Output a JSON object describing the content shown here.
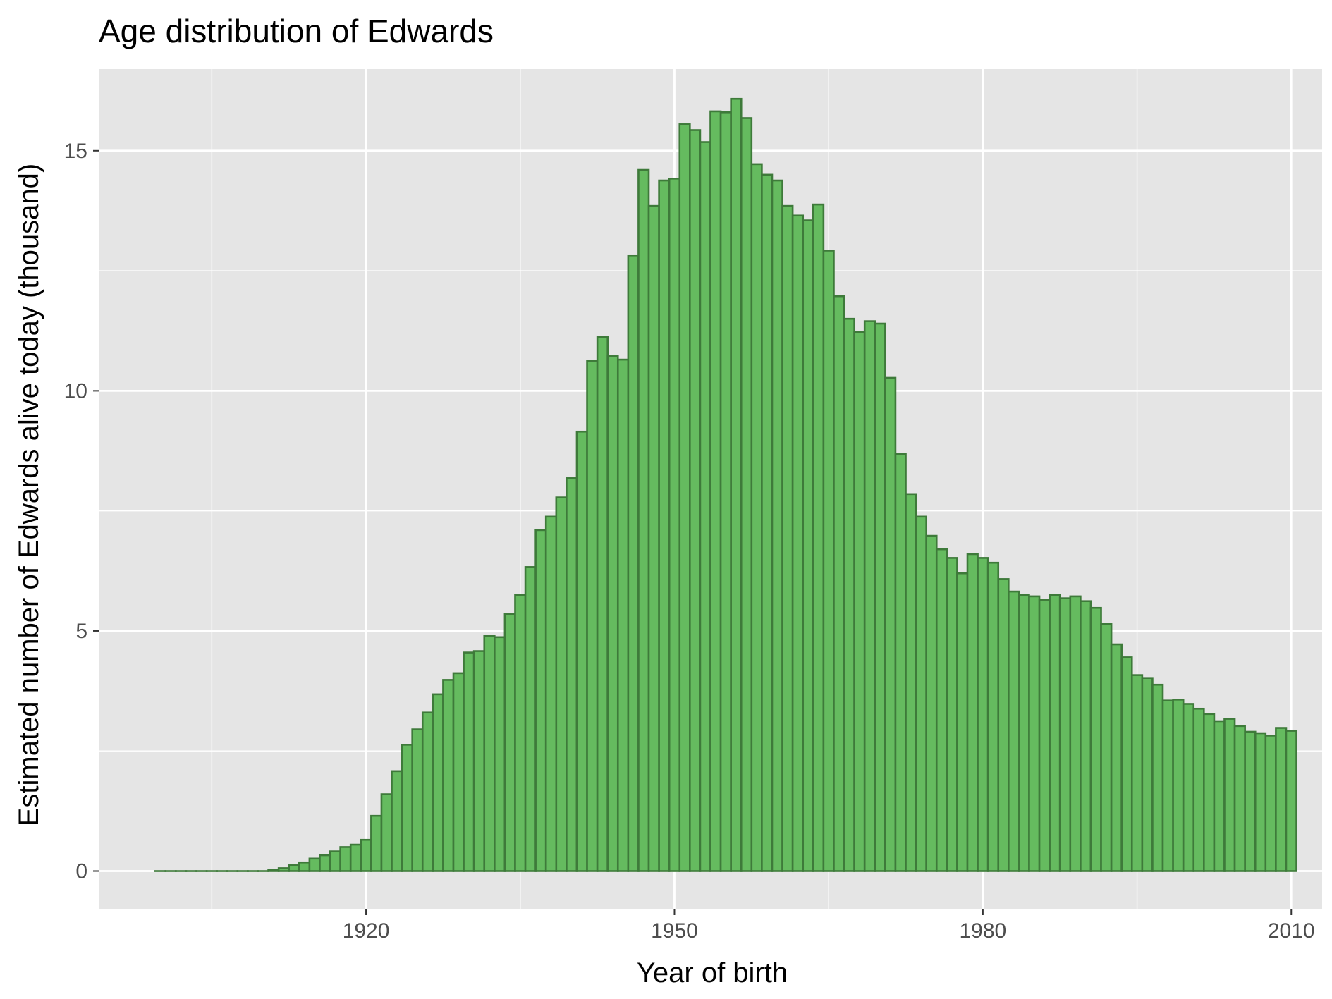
{
  "chart_data": {
    "type": "bar",
    "title": "Age distribution of Edwards",
    "xlabel": "Year of birth",
    "ylabel": "Estimated number of Edwards alive today (thousand)",
    "xlim": [
      1894,
      2013
    ],
    "ylim": [
      -0.8,
      16.7
    ],
    "xticks": [
      1920,
      1950,
      1980,
      2010
    ],
    "yticks": [
      0,
      5,
      10,
      15
    ],
    "x_minor_gridlines": [
      1905,
      1935,
      1965,
      1995
    ],
    "y_minor_gridlines": [
      2.5,
      7.5,
      12.5
    ],
    "grid": true,
    "legend": "none",
    "colors": {
      "bar_fill": "#65bb5f",
      "bar_stroke": "#3e7a3a",
      "panel_bg": "#e5e5e5",
      "gridline": "#ffffff"
    },
    "x": [
      1900,
      1901,
      1902,
      1903,
      1904,
      1905,
      1906,
      1907,
      1908,
      1909,
      1910,
      1911,
      1912,
      1913,
      1914,
      1915,
      1916,
      1917,
      1918,
      1919,
      1920,
      1921,
      1922,
      1923,
      1924,
      1925,
      1926,
      1927,
      1928,
      1929,
      1930,
      1931,
      1932,
      1933,
      1934,
      1935,
      1936,
      1937,
      1938,
      1939,
      1940,
      1941,
      1942,
      1943,
      1944,
      1945,
      1946,
      1947,
      1948,
      1949,
      1950,
      1951,
      1952,
      1953,
      1954,
      1955,
      1956,
      1957,
      1958,
      1959,
      1960,
      1961,
      1962,
      1963,
      1964,
      1965,
      1966,
      1967,
      1968,
      1969,
      1970,
      1971,
      1972,
      1973,
      1974,
      1975,
      1976,
      1977,
      1978,
      1979,
      1980,
      1981,
      1982,
      1983,
      1984,
      1985,
      1986,
      1987,
      1988,
      1989,
      1990,
      1991,
      1992,
      1993,
      1994,
      1995,
      1996,
      1997,
      1998,
      1999,
      2000,
      2001,
      2002,
      2003,
      2004,
      2005,
      2006,
      2007,
      2008,
      2009,
      2010
    ],
    "values": [
      0,
      0,
      0,
      0,
      0,
      0,
      0,
      0,
      0,
      0,
      0,
      0.02,
      0.06,
      0.12,
      0.18,
      0.26,
      0.33,
      0.41,
      0.5,
      0.55,
      0.65,
      1.15,
      1.6,
      2.08,
      2.63,
      2.95,
      3.3,
      3.68,
      3.98,
      4.12,
      4.55,
      4.58,
      4.9,
      4.87,
      5.35,
      5.75,
      6.33,
      7.1,
      7.38,
      7.78,
      8.18,
      9.15,
      10.62,
      11.12,
      10.72,
      10.65,
      12.82,
      14.6,
      13.85,
      14.38,
      14.42,
      15.55,
      15.43,
      15.18,
      15.82,
      15.8,
      16.08,
      15.68,
      14.72,
      14.5,
      14.38,
      13.85,
      13.65,
      13.55,
      13.88,
      12.92,
      11.97,
      11.5,
      11.22,
      11.45,
      11.4,
      10.27,
      8.68,
      7.85,
      7.38,
      6.98,
      6.7,
      6.52,
      6.2,
      6.6,
      6.52,
      6.42,
      6.08,
      5.82,
      5.75,
      5.72,
      5.65,
      5.75,
      5.68,
      5.72,
      5.62,
      5.48,
      5.15,
      4.72,
      4.45,
      4.08,
      4.02,
      3.88,
      3.55,
      3.57,
      3.48,
      3.38,
      3.27,
      3.12,
      3.17,
      3.02,
      2.9,
      2.87,
      2.82,
      2.98,
      2.92
    ]
  }
}
